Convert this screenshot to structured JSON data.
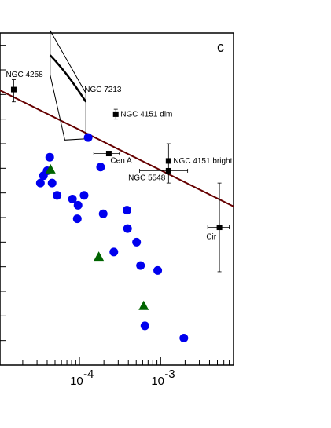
{
  "chart_data": {
    "type": "scatter",
    "title": "",
    "panel_label": "c",
    "xlabel": "",
    "ylabel": "",
    "x_scale": "log",
    "x_ticks": [
      {
        "value": 0.0001,
        "base": "10",
        "exp": "-4"
      },
      {
        "value": 0.001,
        "base": "10",
        "exp": "-3"
      }
    ],
    "xlim": [
      1.05e-05,
      0.0079
    ],
    "ylim": [
      0,
      13.5
    ],
    "grid": false,
    "colors": {
      "circles": "#0000ee",
      "triangles": "#006400",
      "fit_line": "#660000",
      "labelled": "#000000"
    },
    "fit_line": {
      "x": [
        1.05e-05,
        0.0079
      ],
      "y": [
        11.17,
        6.45
      ]
    },
    "labelled_points": [
      {
        "name": "NGC 4258",
        "x": 1.55e-05,
        "y": 11.2,
        "yerr": [
          0.5,
          0.4
        ],
        "label_anchor": "top"
      },
      {
        "name": "NGC 4151 dim",
        "x": 0.00028,
        "y": 10.2,
        "yerr": [
          0.2,
          0.2
        ],
        "label_anchor": "right"
      },
      {
        "name": "Cen A",
        "x": 0.00023,
        "y": 8.6,
        "xerr": [
          8e-05,
          8e-05
        ],
        "label_anchor": "below-right"
      },
      {
        "name": "NGC 4151 bright",
        "x": 0.00125,
        "y": 8.3,
        "yerr": [
          0.9,
          0.7
        ],
        "label_anchor": "right"
      },
      {
        "name": "NGC 5548",
        "x": 0.00125,
        "y": 7.9,
        "xerr": [
          0.0007,
          0.0009
        ],
        "label_anchor": "left"
      },
      {
        "name": "Cir",
        "x": 0.0053,
        "y": 5.6,
        "xerr": [
          0.0015,
          0.0017
        ],
        "yerr": [
          1.8,
          1.8
        ],
        "label_anchor": "below-left"
      }
    ],
    "blue_circles": [
      {
        "x": 4.3e-05,
        "y": 8.45
      },
      {
        "x": 4e-05,
        "y": 7.9
      },
      {
        "x": 3.6e-05,
        "y": 7.7
      },
      {
        "x": 3.3e-05,
        "y": 7.4
      },
      {
        "x": 4.6e-05,
        "y": 7.4
      },
      {
        "x": 5.3e-05,
        "y": 6.9
      },
      {
        "x": 8.2e-05,
        "y": 6.75
      },
      {
        "x": 9.6e-05,
        "y": 6.5
      },
      {
        "x": 0.000114,
        "y": 6.9
      },
      {
        "x": 9.4e-05,
        "y": 5.95
      },
      {
        "x": 0.000128,
        "y": 9.25
      },
      {
        "x": 0.000182,
        "y": 8.05
      },
      {
        "x": 0.000196,
        "y": 6.15
      },
      {
        "x": 0.000385,
        "y": 6.3
      },
      {
        "x": 0.000391,
        "y": 5.55
      },
      {
        "x": 0.000505,
        "y": 5.0
      },
      {
        "x": 0.000265,
        "y": 4.6
      },
      {
        "x": 0.000565,
        "y": 4.05
      },
      {
        "x": 0.00092,
        "y": 3.85
      },
      {
        "x": 0.00064,
        "y": 1.6
      },
      {
        "x": 0.00193,
        "y": 1.1
      }
    ],
    "green_triangles": [
      {
        "x": 4.4e-05,
        "y": 7.95
      },
      {
        "x": 0.000173,
        "y": 4.4
      },
      {
        "x": 0.000618,
        "y": 2.4
      }
    ],
    "bowtie": {
      "name": "NGC 7213",
      "left_x": 4.35e-05,
      "right_x": 0.00012,
      "upper": {
        "left_y": 13.6,
        "right_y": 11.05
      },
      "lower": {
        "left_y": 11.8,
        "right_y": 9.2
      },
      "apex_y": 9.15,
      "mid": {
        "left_y": 12.6,
        "right_y": 10.7
      },
      "label_anchor": "top-right"
    }
  }
}
